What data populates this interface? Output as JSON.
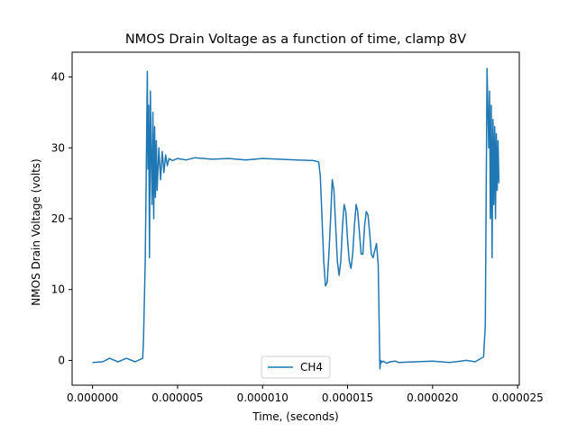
{
  "chart_data": {
    "type": "line",
    "title": "NMOS Drain Voltage as a function of time, clamp 8V",
    "xlabel": "Time, (seconds)",
    "ylabel": "NMOS Drain Voltage (volts)",
    "xlim": [
      -1.2e-06,
      2.51e-05
    ],
    "ylim": [
      -3.5,
      43.5
    ],
    "x_ticks": [
      0,
      5e-06,
      1e-05,
      1.5e-05,
      2e-05,
      2.5e-05
    ],
    "x_tick_labels": [
      "0.000000",
      "0.000005",
      "0.000010",
      "0.000015",
      "0.000020",
      "0.000025"
    ],
    "y_ticks": [
      0,
      10,
      20,
      30,
      40
    ],
    "y_tick_labels": [
      "0",
      "10",
      "20",
      "30",
      "40"
    ],
    "grid": false,
    "legend_position": "lower-center",
    "colors": {
      "CH4": "#1f77b4"
    },
    "series": [
      {
        "name": "CH4",
        "x": [
          0,
          6e-07,
          1e-06,
          1.5e-06,
          2e-06,
          2.5e-06,
          2.95e-06,
          3e-06,
          3.1e-06,
          3.18e-06,
          3.22e-06,
          3.26e-06,
          3.3e-06,
          3.35e-06,
          3.4e-06,
          3.45e-06,
          3.5e-06,
          3.55e-06,
          3.6e-06,
          3.65e-06,
          3.7e-06,
          3.75e-06,
          3.8e-06,
          3.9e-06,
          4e-06,
          4.1e-06,
          4.2e-06,
          4.3e-06,
          4.4e-06,
          4.5e-06,
          4.7e-06,
          5e-06,
          5.5e-06,
          6e-06,
          7e-06,
          8e-06,
          9e-06,
          1e-05,
          1.1e-05,
          1.2e-05,
          1.3e-05,
          1.33e-05,
          1.34e-05,
          1.35e-05,
          1.36e-05,
          1.37e-05,
          1.38e-05,
          1.39e-05,
          1.4e-05,
          1.41e-05,
          1.42e-05,
          1.43e-05,
          1.44e-05,
          1.45e-05,
          1.46e-05,
          1.47e-05,
          1.48e-05,
          1.49e-05,
          1.5e-05,
          1.51e-05,
          1.52e-05,
          1.53e-05,
          1.54e-05,
          1.55e-05,
          1.56e-05,
          1.57e-05,
          1.58e-05,
          1.59e-05,
          1.6e-05,
          1.61e-05,
          1.62e-05,
          1.63e-05,
          1.64e-05,
          1.65e-05,
          1.66e-05,
          1.67e-05,
          1.68e-05,
          1.69e-05,
          1.695e-05,
          1.7e-05,
          1.71e-05,
          1.73e-05,
          1.75e-05,
          1.78e-05,
          1.8e-05,
          1.9e-05,
          2e-05,
          2.1e-05,
          2.2e-05,
          2.25e-05,
          2.3e-05,
          2.31e-05,
          2.32e-05,
          2.33e-05,
          2.335e-05,
          2.34e-05,
          2.345e-05,
          2.35e-05,
          2.355e-05,
          2.36e-05,
          2.365e-05,
          2.37e-05,
          2.375e-05,
          2.38e-05,
          2.385e-05,
          2.39e-05
        ],
        "values": [
          -0.3,
          -0.2,
          0.3,
          -0.2,
          0.3,
          -0.2,
          0.3,
          3,
          14,
          31,
          40.8,
          27,
          36,
          14.5,
          38,
          29,
          22,
          35,
          20,
          33,
          23,
          31,
          24,
          30,
          25.5,
          29.5,
          26.5,
          29,
          27.5,
          28.5,
          28.2,
          28.5,
          28.3,
          28.6,
          28.4,
          28.5,
          28.3,
          28.5,
          28.4,
          28.3,
          28.2,
          28,
          26,
          20,
          14,
          10.5,
          11,
          15,
          20,
          25.5,
          24,
          19,
          14,
          12,
          14,
          19,
          22,
          21,
          17,
          14,
          13,
          15,
          19,
          22,
          21,
          18,
          15,
          15,
          19,
          21,
          20.5,
          18,
          15,
          14.5,
          15.5,
          16.5,
          13.5,
          -1.2,
          0,
          -0.3,
          -0.1,
          -0.4,
          -0.2,
          -0.1,
          -0.3,
          -0.2,
          -0.1,
          -0.3,
          0,
          -0.2,
          0.5,
          5,
          41.2,
          30,
          38,
          20,
          36,
          14.5,
          34,
          22,
          33,
          20,
          32,
          24,
          31,
          25
        ]
      }
    ]
  }
}
